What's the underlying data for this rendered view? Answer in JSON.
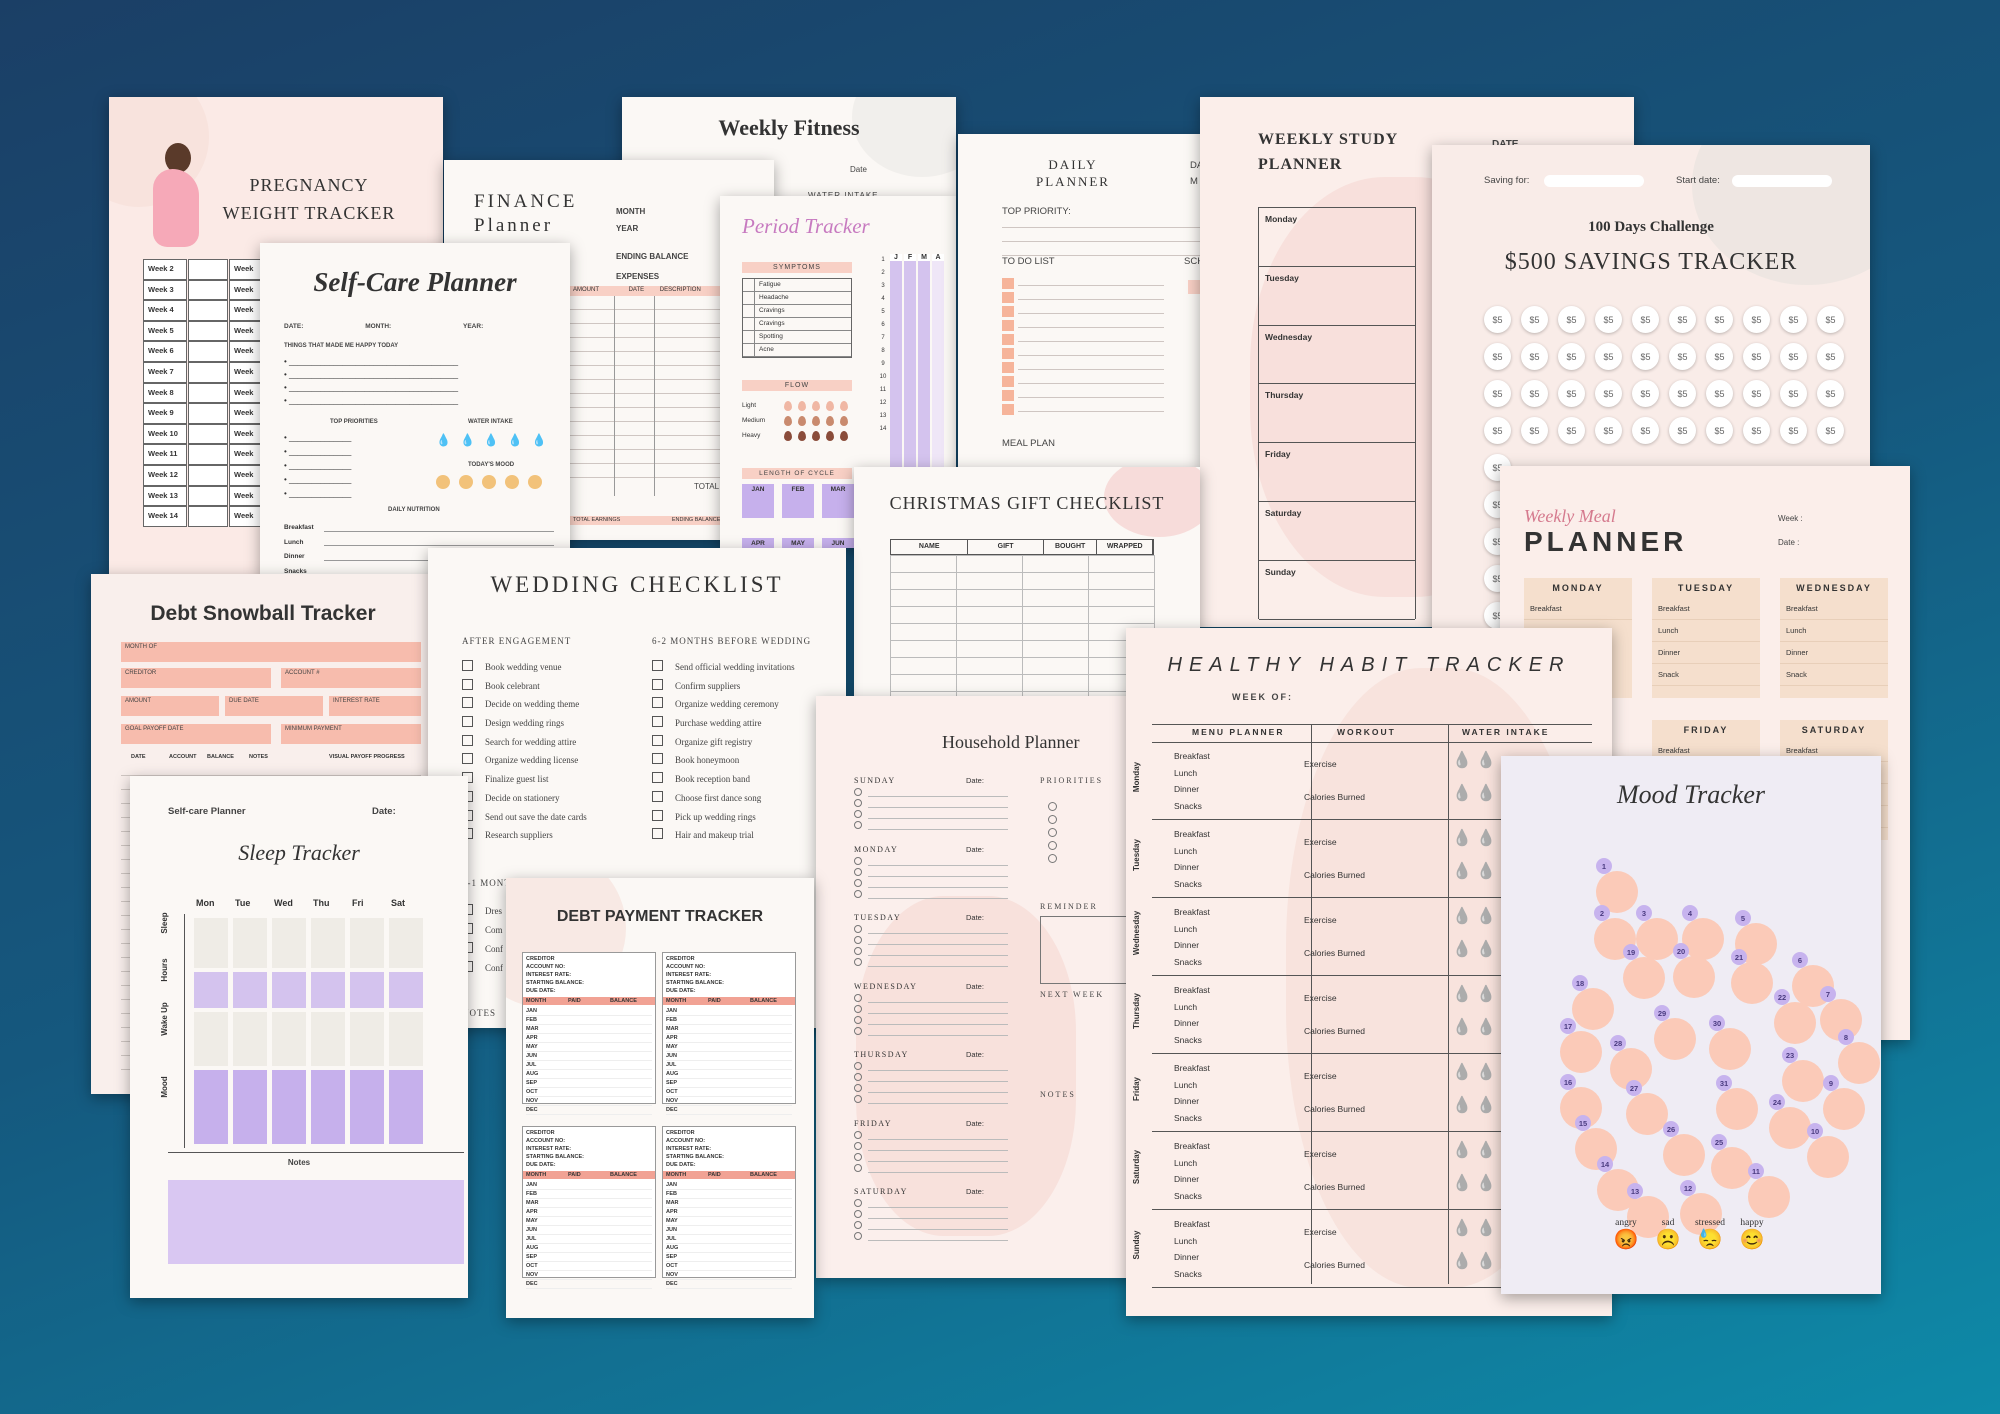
{
  "colors": {
    "pink": "#f7bcad",
    "lavender": "#d4c3ee",
    "cream": "#fbf8f5",
    "peach": "#fbcab8"
  },
  "pregnancy": {
    "title1": "PREGNANCY",
    "title2": "WEIGHT TRACKER",
    "weeks": [
      "Week 2",
      "Week 3",
      "Week 4",
      "Week 5",
      "Week 6",
      "Week 7",
      "Week 8",
      "Week 9",
      "Week 10",
      "Week 11",
      "Week 12",
      "Week 13",
      "Week 14"
    ],
    "col2": "Week"
  },
  "fitness": {
    "title": "Weekly Fitness",
    "date": "Date",
    "water": "WATER INTAKE"
  },
  "finance": {
    "title1": "FINANCE",
    "title2": "Planner",
    "month": "MONTH",
    "year": "YEAR",
    "ending": "ENDING BALANCE",
    "expenses": "EXPENSES",
    "amount": "AMOUNT",
    "date": "DATE",
    "description": "DESCRIPTION",
    "total": "TOTAL",
    "total_earnings": "TOTAL EARNINGS",
    "ending_bal": "ENDING BALANCE"
  },
  "period": {
    "title": "Period Tracker",
    "symptoms": "SYMPTOMS",
    "symptom_list": [
      "Fatigue",
      "Headache",
      "Cravings",
      "Cravings",
      "Spotting",
      "Acne"
    ],
    "flow": "FLOW",
    "flow_list": [
      "Light",
      "Medium",
      "Heavy"
    ],
    "cycle": "LENGTH OF CYCLE",
    "months": [
      "JAN",
      "FEB",
      "MAR",
      "APR",
      "MAY",
      "JUN"
    ],
    "col_heads": [
      "J",
      "F",
      "M",
      "A"
    ],
    "days": [
      "1",
      "2",
      "3",
      "4",
      "5",
      "6",
      "7",
      "8",
      "9",
      "10",
      "11",
      "12",
      "13",
      "14"
    ]
  },
  "daily": {
    "title1": "DAILY",
    "title2": "PLANNER",
    "da": "DA",
    "m": "M",
    "top_priority": "TOP PRIORITY:",
    "todo": "TO DO LIST",
    "sch": "SCH",
    "meal": "MEAL PLAN"
  },
  "study": {
    "title1": "WEEKLY STUDY",
    "title2": "PLANNER",
    "date": "DATE",
    "days": [
      "Monday",
      "Tuesday",
      "Wednesday",
      "Thursday",
      "Friday",
      "Saturday",
      "Sunday"
    ]
  },
  "savings": {
    "saving_for": "Saving for:",
    "start_date": "Start date:",
    "challenge": "100 Days Challenge",
    "title": "$500 SAVINGS TRACKER",
    "amount": "$5"
  },
  "selfcare": {
    "title": "Self-Care Planner",
    "date": "DATE:",
    "month": "MONTH:",
    "year": "YEAR:",
    "happy": "THINGS THAT MADE ME HAPPY TODAY",
    "top": "TOP PRIORITIES",
    "water": "WATER INTAKE",
    "mood": "TODAY'S MOOD",
    "nutrition": "DAILY NUTRITION",
    "meals": [
      "Breakfast",
      "Lunch",
      "Dinner",
      "Snacks"
    ]
  },
  "christmas": {
    "title": "CHRISTMAS GIFT CHECKLIST",
    "cols": [
      "NAME",
      "GIFT",
      "BOUGHT",
      "WRAPPED"
    ]
  },
  "meal": {
    "script": "Weekly Meal",
    "title": "PLANNER",
    "week": "Week :",
    "date": "Date :",
    "days": [
      "MONDAY",
      "TUESDAY",
      "WEDNESDAY",
      "FRIDAY",
      "SATURDAY"
    ],
    "items": [
      "Breakfast",
      "Lunch",
      "Dinner",
      "Snack"
    ]
  },
  "debt": {
    "title": "Debt Snowball Tracker",
    "month_of": "MONTH OF",
    "creditor": "CREDITOR",
    "account": "ACCOUNT #",
    "amount": "AMOUNT",
    "due": "DUE DATE",
    "interest": "INTEREST RATE",
    "goal": "GOAL PAYOFF DATE",
    "minimum": "MINIMUM PAYMENT",
    "cols": [
      "DATE",
      "ACCOUNT",
      "BALANCE",
      "NOTES"
    ],
    "visual": "VISUAL PAYOFF PROGRESS"
  },
  "wedding": {
    "title": "WEDDING CHECKLIST",
    "after": "AFTER ENGAGEMENT",
    "before": "6-2 MONTHS BEFORE WEDDING",
    "left": [
      "Book wedding venue",
      "Book celebrant",
      "Decide on wedding theme",
      "Design wedding rings",
      "Search for wedding attire",
      "Organize wedding license",
      "Finalize guest list",
      "Decide on stationery",
      "Send out save the date cards",
      "Research suppliers"
    ],
    "right": [
      "Send official wedding invitations",
      "Confirm suppliers",
      "Organize wedding ceremony",
      "Purchase wedding attire",
      "Organize gift registry",
      "Book honeymoon",
      "Book reception band",
      "Choose first dance song",
      "Pick up wedding rings",
      "Hair and makeup trial"
    ],
    "section3": "2-1 MONT",
    "s3_items": [
      "Dres",
      "Com",
      "Conf",
      "Conf"
    ],
    "notes": "NOTES"
  },
  "household": {
    "title": "Household Planner",
    "days": [
      "SUNDAY",
      "MONDAY",
      "TUESDAY",
      "WEDNESDAY",
      "THURSDAY",
      "FRIDAY",
      "SATURDAY"
    ],
    "date": "Date:",
    "priorities": "PRIORITIES",
    "reminder": "REMINDER",
    "next_week": "NEXT WEEK",
    "notes": "NOTES"
  },
  "habit": {
    "title": "HEALTHY HABIT TRACKER",
    "week_of": "WEEK OF:",
    "cols": [
      "MENU PLANNER",
      "WORKOUT",
      "WATER INTAKE"
    ],
    "days": [
      "Monday",
      "Tuesday",
      "Wednesday",
      "Thursday",
      "Friday",
      "Saturday",
      "Sunday"
    ],
    "meals": [
      "Breakfast",
      "Lunch",
      "Dinner",
      "Snacks"
    ],
    "exercise": "Exercise",
    "calories": "Calories Burned"
  },
  "mood": {
    "title": "Mood Tracker",
    "legend": [
      "angry",
      "sad",
      "stressed",
      "happy"
    ],
    "legend_icons": [
      "😡",
      "☹️",
      "😓",
      "😊"
    ]
  },
  "selfcare2": {
    "title": "Self-care Planner",
    "date": "Date:",
    "sleep_title": "Sleep Tracker",
    "days": [
      "Mon",
      "Tue",
      "Wed",
      "Thu",
      "Fri",
      "Sat"
    ],
    "rows": [
      "Sleep",
      "Hours",
      "Wake Up",
      "Mood"
    ],
    "notes": "Notes"
  },
  "debtpay": {
    "title": "DEBT PAYMENT TRACKER",
    "fields": [
      "CREDITOR",
      "ACCOUNT NO:",
      "INTEREST RATE:",
      "STARTING BALANCE:",
      "DUE DATE:"
    ],
    "cols": [
      "MONTH",
      "PAID",
      "BALANCE"
    ],
    "months": [
      "JAN",
      "FEB",
      "MAR",
      "APR",
      "MAY",
      "JUN",
      "JUL",
      "AUG",
      "SEP",
      "OCT",
      "NOV",
      "DEC"
    ]
  }
}
